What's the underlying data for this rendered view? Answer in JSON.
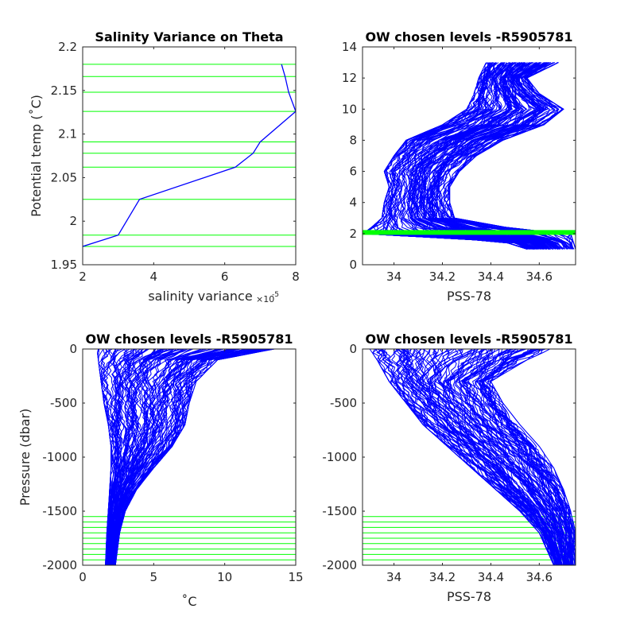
{
  "chart_data": [
    {
      "type": "line",
      "title": "Salinity Variance on Theta",
      "xlabel": "salinity variance",
      "xlabel_multiplier": "×10",
      "xlabel_exponent": "-5",
      "ylabel": "Potential temp (˚C)",
      "xlim": [
        2,
        8
      ],
      "ylim": [
        1.95,
        2.2
      ],
      "xticks": [
        2,
        4,
        6,
        8
      ],
      "xtick_labels": [
        "2",
        "4",
        "6",
        "8"
      ],
      "yticks": [
        1.95,
        2,
        2.05,
        2.1,
        2.15,
        2.2
      ],
      "ytick_labels": [
        "1.95",
        "2",
        "2.05",
        "2.1",
        "2.15",
        "2.2"
      ],
      "colors": {
        "line": "#0000ff",
        "levels": "#00ff00"
      },
      "series": [
        {
          "x": [
            2.0,
            3.0,
            3.6,
            6.3,
            6.8,
            7.0,
            8.0,
            7.8,
            7.7,
            7.6
          ],
          "y": [
            1.971,
            1.984,
            2.025,
            2.062,
            2.078,
            2.091,
            2.126,
            2.148,
            2.166,
            2.18
          ]
        }
      ],
      "hlines": [
        1.971,
        1.984,
        2.025,
        2.062,
        2.078,
        2.091,
        2.126,
        2.148,
        2.166,
        2.18
      ]
    },
    {
      "type": "line",
      "title": "OW chosen levels -R5905781",
      "xlabel": "PSS-78",
      "ylabel": "",
      "xlim": [
        33.87,
        34.75
      ],
      "ylim": [
        0,
        14
      ],
      "xticks": [
        34,
        34.2,
        34.4,
        34.6
      ],
      "xtick_labels": [
        "34",
        "34.2",
        "34.4",
        "34.6"
      ],
      "yticks": [
        0,
        2,
        4,
        6,
        8,
        10,
        12,
        14
      ],
      "ytick_labels": [
        "0",
        "2",
        "4",
        "6",
        "8",
        "10",
        "12",
        "14"
      ],
      "colors": {
        "line": "#0000ff",
        "levels": "#00ff00"
      },
      "envelope": {
        "y": [
          1.0,
          1.5,
          2.0,
          2.3,
          3.0,
          4.0,
          5.0,
          6.0,
          7.0,
          8.0,
          9.0,
          10.0,
          11.0,
          12.0,
          13.0
        ],
        "s_low": [
          34.55,
          34.45,
          33.87,
          33.9,
          33.95,
          33.96,
          33.98,
          33.96,
          34.0,
          34.05,
          34.2,
          34.3,
          34.33,
          34.35,
          34.38
        ],
        "s_high": [
          34.75,
          34.74,
          34.73,
          34.5,
          34.25,
          34.23,
          34.23,
          34.27,
          34.34,
          34.45,
          34.62,
          34.7,
          34.6,
          34.55,
          34.68
        ]
      },
      "hlines": [
        1.971,
        1.984,
        2.025,
        2.062,
        2.078,
        2.091,
        2.126,
        2.148,
        2.166,
        2.18
      ]
    },
    {
      "type": "line",
      "title": "OW chosen levels -R5905781",
      "xlabel": "˚C",
      "ylabel": "Pressure (dbar)",
      "xlim": [
        0,
        15
      ],
      "ylim": [
        -2000,
        0
      ],
      "xticks": [
        0,
        5,
        10,
        15
      ],
      "xtick_labels": [
        "0",
        "5",
        "10",
        "15"
      ],
      "yticks": [
        -2000,
        -1500,
        -1000,
        -500,
        0
      ],
      "ytick_labels": [
        "-2000",
        "-1500",
        "-1000",
        "-500",
        "0"
      ],
      "colors": {
        "line": "#0000ff",
        "levels": "#00ff00"
      },
      "envelope": {
        "y": [
          0,
          -100,
          -300,
          -500,
          -700,
          -900,
          -1100,
          -1300,
          -1500,
          -1700,
          -2000
        ],
        "x_low": [
          1.0,
          1.1,
          1.3,
          1.5,
          1.8,
          2.0,
          2.0,
          1.9,
          1.8,
          1.7,
          1.6
        ],
        "x_high": [
          13.5,
          9.5,
          8.0,
          7.5,
          7.2,
          6.3,
          5.0,
          3.8,
          3.0,
          2.6,
          2.3
        ]
      },
      "hlines": [
        -1550,
        -1600,
        -1650,
        -1700,
        -1750,
        -1800,
        -1850,
        -1900,
        -1950,
        -2000
      ]
    },
    {
      "type": "line",
      "title": "OW chosen levels -R5905781",
      "xlabel": "PSS-78",
      "ylabel": "",
      "xlim": [
        33.87,
        34.75
      ],
      "ylim": [
        -2000,
        0
      ],
      "xticks": [
        34,
        34.2,
        34.4,
        34.6
      ],
      "xtick_labels": [
        "34",
        "34.2",
        "34.4",
        "34.6"
      ],
      "yticks": [
        -2000,
        -1500,
        -1000,
        -500,
        0
      ],
      "ytick_labels": [
        "-2000",
        "-1500",
        "-1000",
        "-500",
        "0"
      ],
      "colors": {
        "line": "#0000ff",
        "levels": "#00ff00"
      },
      "envelope": {
        "y": [
          0,
          -100,
          -300,
          -500,
          -700,
          -900,
          -1100,
          -1300,
          -1500,
          -1700,
          -2000
        ],
        "s_low": [
          33.9,
          33.93,
          33.98,
          34.05,
          34.12,
          34.22,
          34.32,
          34.42,
          34.52,
          34.6,
          34.66
        ],
        "s_high": [
          34.65,
          34.55,
          34.4,
          34.45,
          34.52,
          34.6,
          34.66,
          34.7,
          34.73,
          34.75,
          34.75
        ]
      },
      "hlines": [
        -1550,
        -1600,
        -1650,
        -1700,
        -1750,
        -1800,
        -1850,
        -1900,
        -1950,
        -2000
      ]
    }
  ]
}
